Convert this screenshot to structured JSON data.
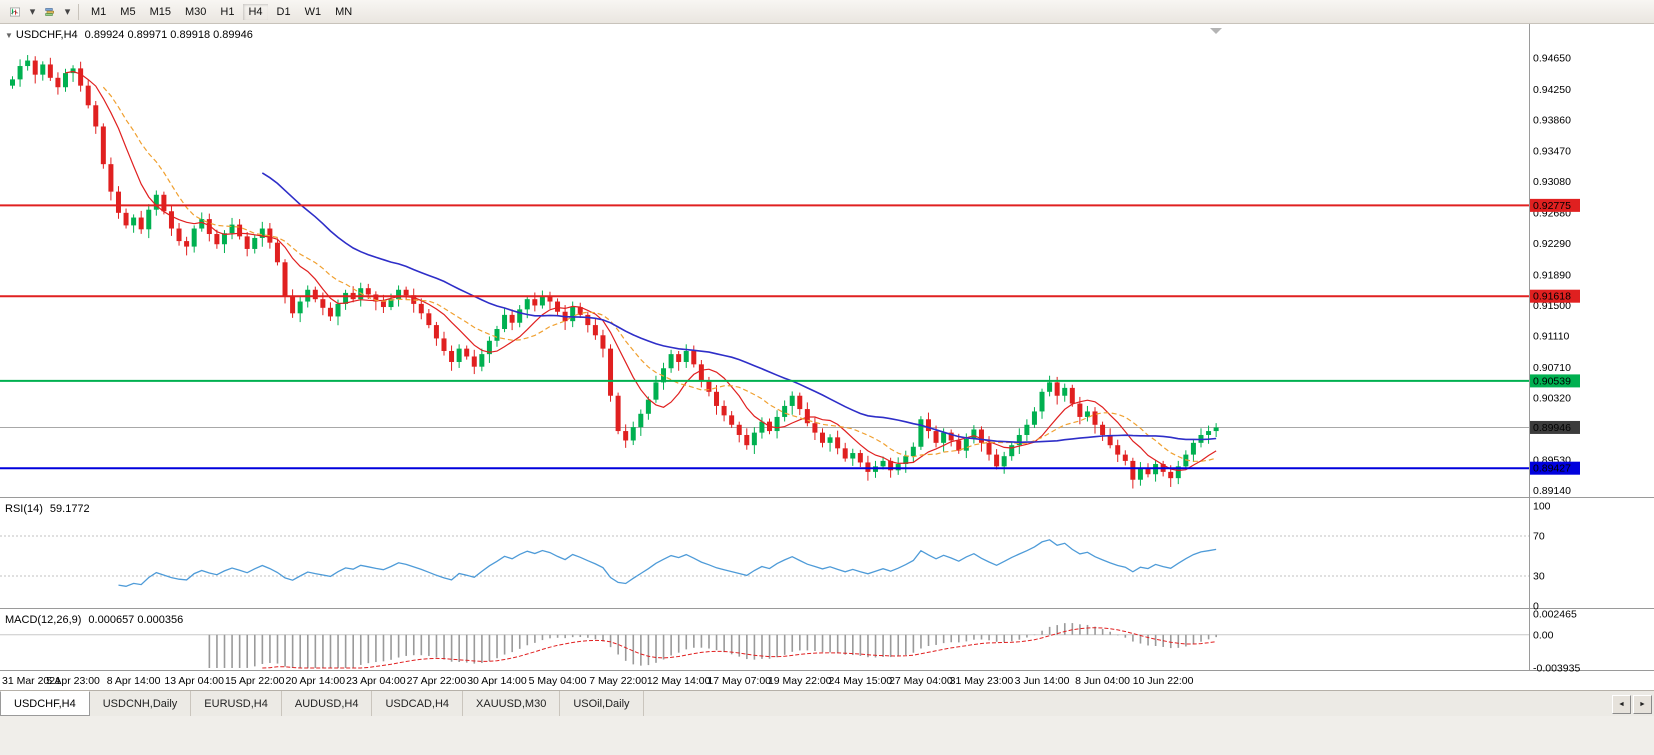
{
  "toolbar": {
    "timeframes": [
      "M1",
      "M5",
      "M15",
      "M30",
      "H1",
      "H4",
      "D1",
      "W1",
      "MN"
    ],
    "active_timeframe": "H4"
  },
  "chart": {
    "header": {
      "symbol": "USDCHF,H4",
      "quote": "0.89924 0.89971 0.89918 0.89946"
    }
  },
  "indicators": {
    "rsi": {
      "label": "RSI(14)",
      "value": "59.1772"
    },
    "macd": {
      "label": "MACD(12,26,9)",
      "value": "0.000657 0.000356"
    }
  },
  "tabs": [
    {
      "label": "USDCHF,H4",
      "active": true
    },
    {
      "label": "USDCNH,Daily",
      "active": false
    },
    {
      "label": "EURUSD,H4",
      "active": false
    },
    {
      "label": "AUDUSD,H4",
      "active": false
    },
    {
      "label": "USDCAD,H4",
      "active": false
    },
    {
      "label": "XAUUSD,M30",
      "active": false
    },
    {
      "label": "USOil,Daily",
      "active": false
    }
  ],
  "tab_scroll": {
    "left": "◄",
    "right": "►"
  },
  "chart_data": {
    "type": "candlestick",
    "symbol": "USDCHF",
    "timeframe": "H4",
    "ohlc_current": {
      "open": 0.89924,
      "high": 0.89971,
      "low": 0.89918,
      "close": 0.89946
    },
    "y_range": [
      0.8906,
      0.9506
    ],
    "first_open": 0.943,
    "closes": [
      0.9438,
      0.9455,
      0.9462,
      0.9444,
      0.9457,
      0.944,
      0.9428,
      0.9446,
      0.9452,
      0.943,
      0.9405,
      0.9378,
      0.933,
      0.9295,
      0.9268,
      0.9252,
      0.9262,
      0.9247,
      0.9272,
      0.9291,
      0.927,
      0.9248,
      0.9232,
      0.9225,
      0.9248,
      0.926,
      0.9241,
      0.9228,
      0.9242,
      0.9253,
      0.9238,
      0.9222,
      0.9236,
      0.9248,
      0.923,
      0.9205,
      0.9162,
      0.914,
      0.9155,
      0.917,
      0.9158,
      0.9147,
      0.9136,
      0.9152,
      0.9166,
      0.9158,
      0.9172,
      0.9164,
      0.9155,
      0.9148,
      0.9158,
      0.917,
      0.9163,
      0.9152,
      0.914,
      0.9125,
      0.9108,
      0.9092,
      0.9078,
      0.9095,
      0.9085,
      0.9072,
      0.9088,
      0.9105,
      0.912,
      0.9138,
      0.9128,
      0.9145,
      0.9158,
      0.915,
      0.9162,
      0.9155,
      0.9142,
      0.913,
      0.9148,
      0.9138,
      0.9125,
      0.9112,
      0.9095,
      0.9035,
      0.899,
      0.8978,
      0.8995,
      0.9012,
      0.903,
      0.9052,
      0.907,
      0.9088,
      0.9078,
      0.9092,
      0.9075,
      0.9055,
      0.904,
      0.9022,
      0.901,
      0.8998,
      0.8985,
      0.8972,
      0.8988,
      0.9002,
      0.899,
      0.9008,
      0.9022,
      0.9035,
      0.9018,
      0.9,
      0.8988,
      0.8975,
      0.8982,
      0.8968,
      0.8955,
      0.8962,
      0.895,
      0.8938,
      0.8945,
      0.8952,
      0.894,
      0.8948,
      0.8958,
      0.897,
      0.9005,
      0.899,
      0.8975,
      0.8988,
      0.8978,
      0.8965,
      0.898,
      0.8992,
      0.8975,
      0.896,
      0.8945,
      0.8958,
      0.8972,
      0.8985,
      0.8998,
      0.9015,
      0.904,
      0.9052,
      0.9035,
      0.9045,
      0.9025,
      0.9008,
      0.9015,
      0.8998,
      0.8985,
      0.8972,
      0.896,
      0.8952,
      0.8928,
      0.8942,
      0.8935,
      0.8948,
      0.8938,
      0.893,
      0.8945,
      0.896,
      0.8975,
      0.8985,
      0.899,
      0.89946
    ],
    "colors": {
      "up": "#00b050",
      "down": "#e02020",
      "bid_line": "#a8a8a8",
      "bid_tag_bg": "#3c3c3c"
    },
    "moving_averages": [
      {
        "name": "fast",
        "period": 8,
        "color": "#e02020",
        "style": "solid"
      },
      {
        "name": "mid",
        "period": 13,
        "color": "#f0a030",
        "style": "dash"
      },
      {
        "name": "slow",
        "period": 34,
        "color": "#2e2ec8",
        "style": "solid"
      }
    ],
    "horizontal_lines": [
      {
        "price": 0.92775,
        "label": "0.92775",
        "color": "#e02020"
      },
      {
        "price": 0.91618,
        "label": "0.91618",
        "color": "#e02020"
      },
      {
        "price": 0.90539,
        "label": "0.90539",
        "color": "#00b050"
      },
      {
        "price": 0.89427,
        "label": "0.89427",
        "color": "#0000dd"
      }
    ],
    "current_price": {
      "price": 0.89946,
      "label": "0.89946"
    },
    "price_axis_ticks": [
      "0.94650",
      "0.94250",
      "0.93860",
      "0.93470",
      "0.93080",
      "0.92680",
      "0.92290",
      "0.91890",
      "0.91500",
      "0.91110",
      "0.90710",
      "0.90320",
      "0.89930",
      "0.89530",
      "0.89140"
    ],
    "time_axis_ticks": [
      "31 Mar 2021",
      "5 Apr 23:00",
      "8 Apr 14:00",
      "13 Apr 04:00",
      "15 Apr 22:00",
      "20 Apr 14:00",
      "23 Apr 04:00",
      "27 Apr 22:00",
      "30 Apr 14:00",
      "5 May 04:00",
      "7 May 22:00",
      "12 May 14:00",
      "17 May 07:00",
      "19 May 22:00",
      "24 May 15:00",
      "27 May 04:00",
      "31 May 23:00",
      "3 Jun 14:00",
      "8 Jun 04:00",
      "10 Jun 22:00"
    ],
    "rsi": {
      "period": 14,
      "current": 59.1772,
      "range": [
        0,
        100
      ],
      "levels": [
        70,
        30
      ],
      "color": "#4e9bd8",
      "axis_ticks": [
        {
          "label": "100",
          "v": 100
        },
        {
          "label": "70",
          "v": 70
        },
        {
          "label": "30",
          "v": 30
        },
        {
          "label": "0",
          "v": 0
        }
      ]
    },
    "macd": {
      "fast": 12,
      "slow": 26,
      "signal": 9,
      "current_main": 0.000657,
      "current_signal": 0.000356,
      "range": [
        -0.003935,
        0.002465
      ],
      "histogram_color": "#9a9a9a",
      "signal_color": "#e02020",
      "axis_ticks": [
        {
          "label": "0.002465",
          "v": 0.002465
        },
        {
          "label": "0.00",
          "v": 0
        },
        {
          "label": "-0.003935",
          "v": -0.003935
        }
      ]
    }
  }
}
